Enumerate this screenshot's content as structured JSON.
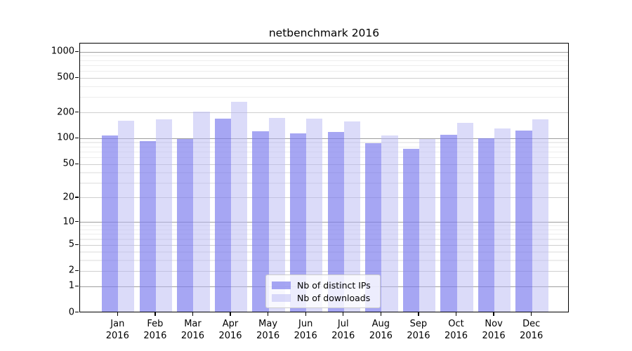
{
  "title": "netbenchmark 2016",
  "chart_data": {
    "type": "bar",
    "title": "netbenchmark 2016",
    "x_months": [
      "Jan",
      "Feb",
      "Mar",
      "Apr",
      "May",
      "Jun",
      "Jul",
      "Aug",
      "Sep",
      "Oct",
      "Nov",
      "Dec"
    ],
    "x_year": "2016",
    "series": [
      {
        "name": "Nb of distinct IPs",
        "color": "rgba(124,124,238,0.68)",
        "solid_color": "#a6a6f0",
        "values": [
          105,
          91,
          96,
          166,
          119,
          112,
          117,
          86,
          74,
          107,
          99,
          120
        ]
      },
      {
        "name": "Nb of downloads",
        "color": "rgba(183,183,243,0.5)",
        "solid_color": "#d9d9f8",
        "values": [
          157,
          163,
          200,
          260,
          168,
          166,
          153,
          105,
          96,
          148,
          127,
          163
        ]
      }
    ],
    "yscale": "symlog",
    "yticks": [
      0,
      1,
      2,
      5,
      10,
      20,
      50,
      100,
      200,
      500,
      1000
    ],
    "yticks_minor": [
      3,
      4,
      6,
      7,
      8,
      9,
      30,
      40,
      60,
      70,
      80,
      90,
      300,
      400,
      600,
      700,
      800,
      900
    ],
    "ylim": [
      0,
      1250
    ],
    "xlabel": "",
    "ylabel": "",
    "grid": true,
    "legend_position": "lower center"
  }
}
